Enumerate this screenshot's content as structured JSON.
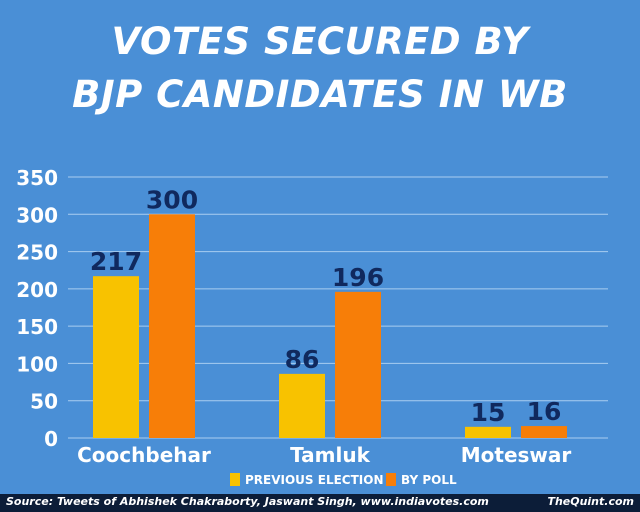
{
  "chart_data": {
    "type": "bar",
    "title_lines": [
      "VOTES SECURED BY",
      "BJP CANDIDATES IN WB"
    ],
    "categories": [
      "Coochbehar",
      "Tamluk",
      "Moteswar"
    ],
    "series": [
      {
        "name": "PREVIOUS ELECTION",
        "values": [
          217,
          86,
          15
        ],
        "color": "#f8c200"
      },
      {
        "name": "BY POLL",
        "values": [
          300,
          196,
          16
        ],
        "color": "#f77e08"
      }
    ],
    "ylim": [
      0,
      350
    ],
    "yticks": [
      "0",
      "50",
      "100",
      "150",
      "200",
      "250",
      "300",
      "350"
    ],
    "grid": true,
    "legend_position": "bottom",
    "colors": {
      "background": "#4a8fd6",
      "gridline": "#a9cdf0",
      "label": "#10295e",
      "axis_text": "#ffffff"
    }
  },
  "footer": {
    "source": "Source: Tweets of Abhishek Chakraborty, Jaswant Singh, www.indiavotes.com",
    "brand": "TheQuint.com"
  }
}
